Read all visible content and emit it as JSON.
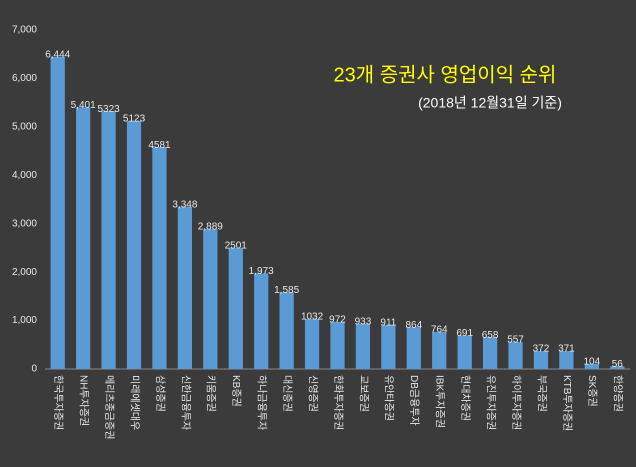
{
  "chart_data": {
    "type": "bar",
    "title": "23개 증권사 영업이익 순위",
    "subtitle": "(2018년 12월31일 기준)",
    "categories": [
      "한국투자증권",
      "NH투자증권",
      "메리츠종금증권",
      "미래에셋대우",
      "삼성증권",
      "신한금융투자",
      "키움증권",
      "KB증권",
      "하나금융투자",
      "대신증권",
      "신영증권",
      "한화투자증권",
      "교보증권",
      "유안타증권",
      "DB금융투자",
      "IBK투자증권",
      "현대차증권",
      "유진투자증권",
      "하이투자증권",
      "부국증권",
      "KTB투자증권",
      "SK증권",
      "한양증권"
    ],
    "values": [
      6444,
      5401,
      5323,
      5123,
      4581,
      3348,
      2889,
      2501,
      1973,
      1585,
      1032,
      972,
      933,
      911,
      864,
      764,
      691,
      658,
      557,
      372,
      371,
      104,
      56
    ],
    "value_labels": [
      "6,444",
      "5,401",
      "5323",
      "5123",
      "4581",
      "3,348",
      "2,889",
      "2501",
      "1,973",
      "1,585",
      "1032",
      "972",
      "933",
      "911",
      "864",
      "764",
      "691",
      "658",
      "557",
      "372",
      "371",
      "104",
      "56"
    ],
    "color": "#5b9bd5",
    "ylim": [
      0,
      7000
    ],
    "yticks": [
      0,
      {
        "value": 1000,
        "label": "1,000"
      },
      {
        "value": 2000,
        "label": "2,000"
      },
      {
        "value": 3000,
        "label": "3,000"
      },
      {
        "value": 4000,
        "label": "4,000"
      },
      {
        "value": 5000,
        "label": "5,000"
      },
      {
        "value": 6000,
        "label": "6,000"
      },
      {
        "value": 7000,
        "label": "7,000"
      }
    ],
    "grid": false
  }
}
